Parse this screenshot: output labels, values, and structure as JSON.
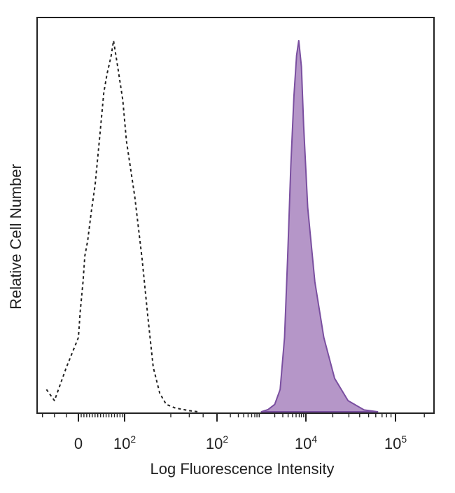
{
  "chart_data": {
    "type": "area",
    "title": "",
    "xlabel": "Log Fluorescence Intensity",
    "ylabel": "Relative Cell Number",
    "xscale": "biexponential",
    "ylim": [
      0,
      100
    ],
    "grid": false,
    "legend": "none",
    "x_ticks": [
      {
        "base": "0",
        "exp": ""
      },
      {
        "base": "10",
        "exp": "2"
      },
      {
        "base": "10",
        "exp": "2"
      },
      {
        "base": "10",
        "exp": "4"
      },
      {
        "base": "10",
        "exp": "5"
      }
    ],
    "series": [
      {
        "style": "dashed-outline",
        "color": "#222222",
        "points": [
          [
            -0.16,
            6
          ],
          [
            -0.12,
            3
          ],
          [
            -0.06,
            12
          ],
          [
            0.0,
            20
          ],
          [
            0.04,
            27
          ],
          [
            0.1,
            35
          ],
          [
            0.14,
            42
          ],
          [
            0.2,
            46
          ],
          [
            0.28,
            54
          ],
          [
            0.36,
            61
          ],
          [
            0.46,
            74
          ],
          [
            0.55,
            86
          ],
          [
            0.62,
            91
          ],
          [
            0.71,
            96
          ],
          [
            0.76,
            100
          ],
          [
            0.85,
            93
          ],
          [
            0.96,
            84
          ],
          [
            1.02,
            73
          ],
          [
            1.11,
            58
          ],
          [
            1.19,
            41
          ],
          [
            1.25,
            26
          ],
          [
            1.31,
            12
          ],
          [
            1.38,
            5
          ],
          [
            1.45,
            2
          ],
          [
            1.55,
            1
          ],
          [
            1.7,
            0.3
          ],
          [
            1.8,
            0
          ]
        ]
      },
      {
        "style": "filled",
        "color": "#b596c8",
        "stroke": "#7a4fa0",
        "points": [
          [
            3.0,
            0
          ],
          [
            3.15,
            0.6
          ],
          [
            3.3,
            2
          ],
          [
            3.42,
            6
          ],
          [
            3.52,
            20
          ],
          [
            3.59,
            42
          ],
          [
            3.66,
            66
          ],
          [
            3.73,
            85
          ],
          [
            3.79,
            96
          ],
          [
            3.84,
            100
          ],
          [
            3.9,
            93
          ],
          [
            3.95,
            77
          ],
          [
            4.02,
            55
          ],
          [
            4.1,
            35
          ],
          [
            4.2,
            20
          ],
          [
            4.32,
            9
          ],
          [
            4.47,
            3
          ],
          [
            4.65,
            0.5
          ],
          [
            4.8,
            0
          ]
        ]
      }
    ]
  }
}
